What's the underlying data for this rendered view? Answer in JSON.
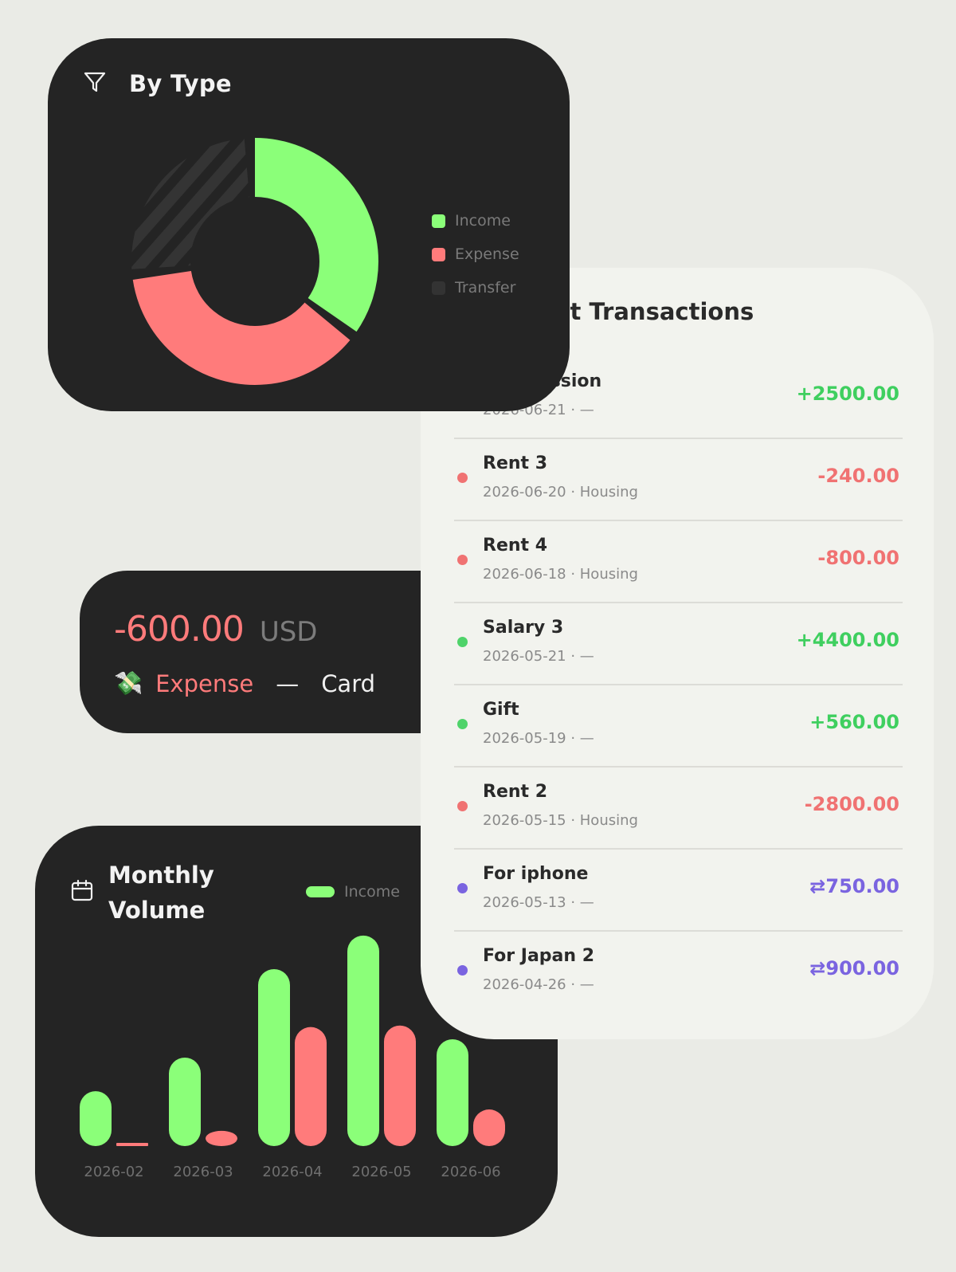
{
  "by_type": {
    "title": "By Type",
    "icon": "filter-icon",
    "legend": [
      {
        "label": "Income",
        "color": "#8bff79"
      },
      {
        "label": "Expense",
        "color": "#ff7b7b"
      },
      {
        "label": "Transfer",
        "color": "#333333"
      }
    ]
  },
  "amount_card": {
    "value": "-600.00",
    "currency": "USD",
    "emoji": "💸",
    "kind": "Expense",
    "separator": "—",
    "method": "Card"
  },
  "monthly": {
    "title": "Monthly Volume",
    "icon": "calendar-icon",
    "legend_income": "Income"
  },
  "transactions": {
    "title": "Recent Transactions",
    "rows": [
      {
        "name": "Commission",
        "meta": "2026-06-21 · —",
        "amount": "+2500.00",
        "kind": "income"
      },
      {
        "name": "Rent 3",
        "meta": "2026-06-20 · Housing",
        "amount": "-240.00",
        "kind": "expense"
      },
      {
        "name": "Rent 4",
        "meta": "2026-06-18 · Housing",
        "amount": "-800.00",
        "kind": "expense"
      },
      {
        "name": "Salary 3",
        "meta": "2026-05-21 · —",
        "amount": "+4400.00",
        "kind": "income"
      },
      {
        "name": "Gift",
        "meta": "2026-05-19 · —",
        "amount": "+560.00",
        "kind": "income"
      },
      {
        "name": "Rent 2",
        "meta": "2026-05-15 · Housing",
        "amount": "-2800.00",
        "kind": "expense"
      },
      {
        "name": "For iphone",
        "meta": "2026-05-13 · —",
        "amount": "⇄750.00",
        "kind": "transfer"
      },
      {
        "name": "For Japan 2",
        "meta": "2026-04-26 · —",
        "amount": "⇄900.00",
        "kind": "transfer"
      }
    ]
  },
  "colors": {
    "income": "#8bff79",
    "income_text": "#3fcf5f",
    "income_dot": "#4fd36a",
    "expense": "#ff7b7b",
    "expense_text": "#f07272",
    "transfer": "#7a64e0"
  },
  "chart_data": [
    {
      "type": "pie",
      "title": "By Type",
      "categories": [
        "Income",
        "Expense",
        "Transfer"
      ],
      "values": [
        36,
        38,
        26
      ],
      "colors": [
        "#8bff79",
        "#ff7b7b",
        "#333333"
      ],
      "legend": "right"
    },
    {
      "type": "bar",
      "title": "Monthly Volume",
      "categories": [
        "2026-02",
        "2026-03",
        "2026-04",
        "2026-05",
        "2026-06"
      ],
      "series": [
        {
          "name": "Income",
          "values": [
            1800,
            2900,
            5800,
            6900,
            3500
          ],
          "color": "#8bff79"
        },
        {
          "values": [
            0,
            500,
            3900,
            3950,
            1200
          ],
          "color": "#ff7b7b"
        }
      ],
      "ylim": [
        0,
        7000
      ],
      "grid": false,
      "legend": "top-right"
    }
  ]
}
